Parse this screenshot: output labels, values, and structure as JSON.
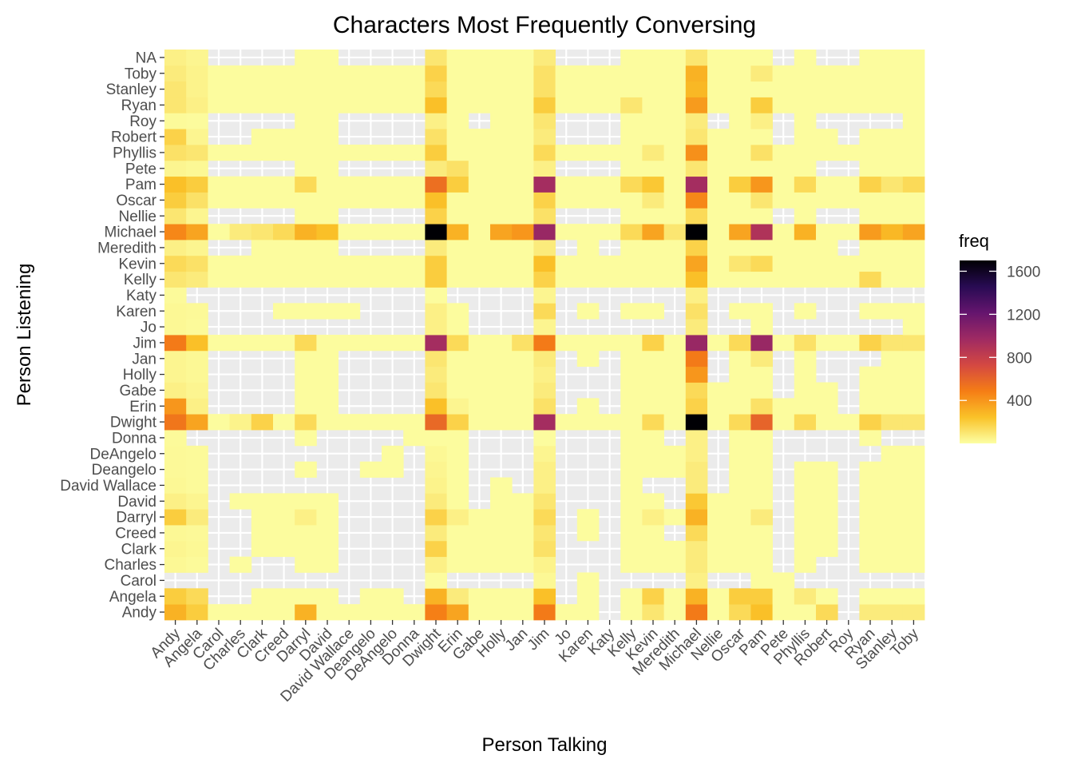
{
  "chart_data": {
    "type": "heatmap",
    "title": "Characters Most Frequently Conversing",
    "xlabel": "Person Talking",
    "ylabel": "Person Listening",
    "x_categories": [
      "Andy",
      "Angela",
      "Carol",
      "Charles",
      "Clark",
      "Creed",
      "Darryl",
      "David",
      "David Wallace",
      "Deangelo",
      "DeAngelo",
      "Donna",
      "Dwight",
      "Erin",
      "Gabe",
      "Holly",
      "Jan",
      "Jim",
      "Jo",
      "Karen",
      "Katy",
      "Kelly",
      "Kevin",
      "Meredith",
      "Michael",
      "Nellie",
      "Oscar",
      "Pam",
      "Pete",
      "Phyllis",
      "Robert",
      "Roy",
      "Ryan",
      "Stanley",
      "Toby"
    ],
    "y_categories": [
      "Andy",
      "Angela",
      "Carol",
      "Charles",
      "Clark",
      "Creed",
      "Darryl",
      "David",
      "David Wallace",
      "Deangelo",
      "DeAngelo",
      "Donna",
      "Dwight",
      "Erin",
      "Gabe",
      "Holly",
      "Jan",
      "Jim",
      "Jo",
      "Karen",
      "Katy",
      "Kelly",
      "Kevin",
      "Meredith",
      "Michael",
      "Nellie",
      "Oscar",
      "Pam",
      "Pete",
      "Phyllis",
      "Robert",
      "Roy",
      "Ryan",
      "Stanley",
      "Toby",
      "NA"
    ],
    "legend": {
      "title": "freq",
      "ticks": [
        400,
        800,
        1200,
        1600
      ],
      "range": [
        1,
        1700
      ],
      "palette": [
        "#fcffa4",
        "#fac228",
        "#f57d15",
        "#d44842",
        "#9f2a63",
        "#65156e",
        "#280b53",
        "#000004"
      ]
    },
    "missing_color": "#ebebeb",
    "cells": {
      "Andy": {
        "Andy": 300,
        "Angela": 200,
        "Darryl": 300,
        "Dwight": 480,
        "Erin": 350,
        "Jim": 500,
        "Kevin": 100,
        "Michael": 500,
        "Oscar": 150,
        "Pam": 250,
        "Robert": 150,
        "Ryan": 80,
        "Stanley": 80,
        "Toby": 80
      },
      "Angela": {
        "Andy": 200,
        "Angela": 150,
        "Dwight": 300,
        "Erin": 80,
        "Jim": 250,
        "Kevin": 180,
        "Michael": 300,
        "Oscar": 200,
        "Pam": 200,
        "Phyllis": 80
      },
      "Carol": {
        "Andy": 15,
        "Angela": 15,
        "Jim": 30,
        "Michael": 60
      },
      "Charles": {
        "Andy": 30,
        "Angela": 20,
        "Dwight": 60,
        "Jim": 50,
        "Michael": 80
      },
      "Clark": {
        "Andy": 40,
        "Angela": 30,
        "Dwight": 180,
        "Jim": 120,
        "Michael": 80
      },
      "Creed": {
        "Andy": 30,
        "Angela": 25,
        "Dwight": 80,
        "Jim": 100,
        "Michael": 150
      },
      "Darryl": {
        "Andy": 200,
        "Angela": 80,
        "Darryl": 60,
        "Dwight": 180,
        "Erin": 60,
        "Jim": 150,
        "Kevin": 60,
        "Michael": 300,
        "Pam": 80
      },
      "David": {
        "Andy": 60,
        "Angela": 40,
        "Dwight": 80,
        "Jim": 100,
        "Michael": 220
      },
      "David Wallace": {
        "Andy": 30,
        "Angela": 20,
        "Dwight": 50,
        "Jim": 60,
        "Michael": 80
      },
      "Deangelo": {
        "Andy": 25,
        "Angela": 20,
        "Dwight": 40,
        "Jim": 60,
        "Michael": 80
      },
      "DeAngelo": {
        "Andy": 25,
        "Angela": 20,
        "Dwight": 30,
        "Jim": 40,
        "Michael": 60
      },
      "Donna": {
        "Andy": 20,
        "Michael": 60
      },
      "Dwight": {
        "Andy": 520,
        "Angela": 350,
        "Charles": 50,
        "Clark": 180,
        "Darryl": 150,
        "Dwight": 580,
        "Erin": 180,
        "Jim": 950,
        "Kevin": 150,
        "Michael": 1700,
        "Oscar": 150,
        "Pam": 600,
        "Phyllis": 150,
        "Ryan": 180,
        "Stanley": 100,
        "Toby": 100
      },
      "Erin": {
        "Andy": 400,
        "Angela": 60,
        "Dwight": 250,
        "Erin": 40,
        "Jim": 120,
        "Michael": 180,
        "Pam": 120
      },
      "Gabe": {
        "Andy": 60,
        "Angela": 40,
        "Dwight": 100,
        "Jim": 80,
        "Michael": 150
      },
      "Holly": {
        "Andy": 40,
        "Angela": 30,
        "Dwight": 80,
        "Jim": 60,
        "Michael": 400
      },
      "Jan": {
        "Andy": 40,
        "Angela": 30,
        "Dwight": 100,
        "Jim": 80,
        "Michael": 500,
        "Pam": 80
      },
      "Jim": {
        "Andy": 500,
        "Angela": 250,
        "Darryl": 150,
        "Dwight": 950,
        "Erin": 150,
        "Jan": 120,
        "Jim": 500,
        "Kevin": 180,
        "Michael": 1000,
        "Oscar": 150,
        "Pam": 1000,
        "Phyllis": 120,
        "Ryan": 180,
        "Stanley": 100,
        "Toby": 100
      },
      "Jo": {
        "Andy": 30,
        "Angela": 20,
        "Dwight": 60,
        "Jim": 40,
        "Michael": 80
      },
      "Karen": {
        "Andy": 30,
        "Angela": 25,
        "Dwight": 60,
        "Jim": 150,
        "Michael": 120
      },
      "Katy": {
        "Andy": 20,
        "Jim": 40,
        "Michael": 60
      },
      "Kelly": {
        "Andy": 100,
        "Angela": 80,
        "Dwight": 200,
        "Jim": 180,
        "Michael": 250,
        "Ryan": 150
      },
      "Kevin": {
        "Andy": 150,
        "Angela": 120,
        "Dwight": 200,
        "Jim": 250,
        "Michael": 350,
        "Oscar": 100,
        "Pam": 150
      },
      "Meredith": {
        "Andy": 60,
        "Angela": 40,
        "Dwight": 80,
        "Jim": 80,
        "Michael": 180
      },
      "Michael": {
        "Andy": 450,
        "Angela": 350,
        "Charles": 80,
        "Clark": 100,
        "Creed": 150,
        "Darryl": 300,
        "David": 250,
        "Dwight": 1700,
        "Erin": 300,
        "Holly": 350,
        "Jan": 400,
        "Jim": 1000,
        "Kelly": 150,
        "Kevin": 350,
        "Meredith": 100,
        "Michael": 1700,
        "Oscar": 350,
        "Pam": 900,
        "Phyllis": 300,
        "Ryan": 380,
        "Stanley": 280,
        "Toby": 350
      },
      "Nellie": {
        "Andy": 100,
        "Angela": 40,
        "Dwight": 180,
        "Jim": 120,
        "Michael": 150
      },
      "Oscar": {
        "Andy": 200,
        "Angela": 120,
        "Dwight": 250,
        "Jim": 180,
        "Kevin": 80,
        "Michael": 450,
        "Pam": 100
      },
      "Pam": {
        "Andy": 250,
        "Angela": 200,
        "Darryl": 150,
        "Dwight": 550,
        "Erin": 200,
        "Jim": 950,
        "Kelly": 150,
        "Kevin": 220,
        "Michael": 950,
        "Oscar": 200,
        "Pam": 400,
        "Phyllis": 150,
        "Ryan": 180,
        "Stanley": 100,
        "Toby": 150
      },
      "Pete": {
        "Andy": 40,
        "Angela": 30,
        "Dwight": 80,
        "Erin": 120,
        "Jim": 60,
        "Michael": 100
      },
      "Phyllis": {
        "Andy": 120,
        "Angela": 100,
        "Dwight": 200,
        "Jim": 150,
        "Kevin": 80,
        "Michael": 420,
        "Pam": 120
      },
      "Robert": {
        "Andy": 180,
        "Angela": 40,
        "Dwight": 120,
        "Jim": 80,
        "Michael": 100
      },
      "Roy": {
        "Andy": 20,
        "Angela": 15,
        "Dwight": 60,
        "Jim": 100,
        "Michael": 80,
        "Pam": 60
      },
      "Ryan": {
        "Andy": 100,
        "Angela": 60,
        "Dwight": 250,
        "Jim": 200,
        "Kelly": 100,
        "Michael": 380,
        "Pam": 200
      },
      "Stanley": {
        "Andy": 100,
        "Angela": 50,
        "Dwight": 150,
        "Jim": 120,
        "Michael": 280
      },
      "Toby": {
        "Andy": 80,
        "Angela": 50,
        "Dwight": 180,
        "Jim": 120,
        "Michael": 300,
        "Pam": 80
      },
      "NA": {
        "Andy": 60,
        "Angela": 40,
        "Dwight": 100,
        "Jim": 80,
        "Michael": 100
      }
    },
    "missing": {
      "Carol": [
        "Andy",
        "Angela",
        "Carol",
        "Charles",
        "Clark",
        "Creed",
        "Darryl",
        "David",
        "David Wallace",
        "Deangelo",
        "DeAngelo",
        "Donna",
        "Erin",
        "Gabe",
        "Holly",
        "Jan",
        "Jo",
        "Katy",
        "Kelly",
        "Kevin",
        "Meredith",
        "Nellie",
        "Oscar",
        "Phyllis",
        "Robert",
        "Roy",
        "Ryan",
        "Stanley",
        "Toby"
      ],
      "Donna": [
        "Angela",
        "Carol",
        "Charles",
        "Clark",
        "Creed",
        "David",
        "David Wallace",
        "Deangelo",
        "DeAngelo",
        "Gabe",
        "Holly",
        "Jan",
        "Jo",
        "Karen",
        "Katy",
        "Meredith",
        "Nellie",
        "Pete",
        "Phyllis",
        "Robert",
        "Roy",
        "Stanley",
        "Toby"
      ],
      "DeAngelo": [
        "Carol",
        "Charles",
        "Clark",
        "Creed",
        "Darryl",
        "David",
        "David Wallace",
        "Deangelo",
        "Donna",
        "Gabe",
        "Holly",
        "Jan",
        "Jo",
        "Karen",
        "Katy",
        "Nellie",
        "Pete",
        "Phyllis",
        "Robert",
        "Roy",
        "Ryan"
      ],
      "Deangelo": [
        "Carol",
        "Charles",
        "Clark",
        "Creed",
        "David",
        "David Wallace",
        "Donna",
        "Gabe",
        "Holly",
        "Jan",
        "Jo",
        "Karen",
        "Katy",
        "Nellie",
        "Pete",
        "Roy"
      ],
      "David Wallace": [
        "Carol",
        "Charles",
        "Clark",
        "Creed",
        "Darryl",
        "David",
        "David Wallace",
        "Deangelo",
        "DeAngelo",
        "Donna",
        "Gabe",
        "Jan",
        "Jo",
        "Karen",
        "Katy",
        "Kevin",
        "Meredith",
        "Nellie",
        "Pete",
        "Roy"
      ],
      "David": [
        "Carol",
        "David Wallace",
        "Deangelo",
        "DeAngelo",
        "Donna",
        "Gabe",
        "Jo",
        "Karen",
        "Katy",
        "Meredith",
        "Pete",
        "Roy"
      ],
      "Darryl": [
        "Carol",
        "Charles",
        "David Wallace",
        "Deangelo",
        "DeAngelo",
        "Donna",
        "Jo",
        "Katy",
        "Roy",
        "Pete"
      ],
      "Creed": [
        "Carol",
        "Charles",
        "David Wallace",
        "Deangelo",
        "DeAngelo",
        "Donna",
        "Jo",
        "Katy",
        "Roy",
        "Pete",
        "Meredith"
      ],
      "Clark": [
        "Carol",
        "Charles",
        "David Wallace",
        "Deangelo",
        "DeAngelo",
        "Donna",
        "Jo",
        "Karen",
        "Katy",
        "Roy",
        "Pete"
      ],
      "Charles": [
        "Carol",
        "Clark",
        "Creed",
        "David Wallace",
        "Deangelo",
        "DeAngelo",
        "Donna",
        "Jo",
        "Karen",
        "Katy",
        "Roy",
        "Pete",
        "Robert"
      ],
      "Angela": [
        "Carol",
        "Charles",
        "David Wallace",
        "Donna",
        "Jo",
        "Katy",
        "Roy"
      ],
      "Andy": [
        "Katy",
        "Roy"
      ],
      "Katy": [
        "Angela",
        "Carol",
        "Charles",
        "Clark",
        "Creed",
        "Darryl",
        "David",
        "David Wallace",
        "Deangelo",
        "DeAngelo",
        "Donna",
        "Erin",
        "Gabe",
        "Holly",
        "Jan",
        "Jo",
        "Karen",
        "Katy",
        "Kelly",
        "Kevin",
        "Meredith",
        "Nellie",
        "Oscar",
        "Pam",
        "Pete",
        "Phyllis",
        "Robert",
        "Roy",
        "Ryan",
        "Stanley",
        "Toby"
      ],
      "Jo": [
        "Carol",
        "Charles",
        "Clark",
        "Creed",
        "Darryl",
        "David",
        "David Wallace",
        "Deangelo",
        "DeAngelo",
        "Donna",
        "Gabe",
        "Holly",
        "Jan",
        "Jo",
        "Karen",
        "Katy",
        "Kelly",
        "Kevin",
        "Meredith",
        "Nellie",
        "Oscar",
        "Pete",
        "Phyllis",
        "Robert",
        "Roy",
        "Ryan",
        "Stanley"
      ],
      "Karen": [
        "Carol",
        "Charles",
        "Clark",
        "Deangelo",
        "DeAngelo",
        "Donna",
        "Gabe",
        "Holly",
        "Jan",
        "Jo",
        "Katy",
        "Meredith",
        "Nellie",
        "Pete",
        "Robert",
        "Roy"
      ],
      "Jan": [
        "Carol",
        "Charles",
        "Clark",
        "Creed",
        "David Wallace",
        "Deangelo",
        "DeAngelo",
        "Donna",
        "Jo",
        "Katy",
        "Nellie",
        "Pete",
        "Robert",
        "Roy",
        "Ryan"
      ],
      "Holly": [
        "Carol",
        "Charles",
        "Clark",
        "Creed",
        "David Wallace",
        "Deangelo",
        "DeAngelo",
        "Donna",
        "Jo",
        "Karen",
        "Katy",
        "Nellie",
        "Pete",
        "Robert",
        "Roy"
      ],
      "Gabe": [
        "Carol",
        "Charles",
        "Clark",
        "Creed",
        "David Wallace",
        "Deangelo",
        "DeAngelo",
        "Donna",
        "Jo",
        "Karen",
        "Katy",
        "Pete",
        "Roy"
      ],
      "Erin": [
        "Carol",
        "Charles",
        "Clark",
        "Creed",
        "David Wallace",
        "Deangelo",
        "DeAngelo",
        "Donna",
        "Jo",
        "Katy",
        "Roy"
      ],
      "Nellie": [
        "Carol",
        "Charles",
        "Clark",
        "Creed",
        "David Wallace",
        "Deangelo",
        "DeAngelo",
        "Donna",
        "Jo",
        "Karen",
        "Katy",
        "Pete",
        "Roy",
        "Robert"
      ],
      "Roy": [
        "Carol",
        "Charles",
        "Clark",
        "Creed",
        "David Wallace",
        "Deangelo",
        "DeAngelo",
        "Donna",
        "Gabe",
        "Jo",
        "Karen",
        "Katy",
        "Nellie",
        "Pete",
        "Robert",
        "Roy",
        "Ryan",
        "Stanley"
      ],
      "Pete": [
        "Carol",
        "Charles",
        "Clark",
        "Creed",
        "David Wallace",
        "Deangelo",
        "DeAngelo",
        "Donna",
        "Jo",
        "Karen",
        "Katy",
        "Roy",
        "Robert"
      ],
      "Robert": [
        "Carol",
        "Charles",
        "David Wallace",
        "Deangelo",
        "DeAngelo",
        "Donna",
        "Jo",
        "Karen",
        "Katy",
        "Pete",
        "Roy"
      ],
      "NA": [
        "Carol",
        "Charles",
        "Clark",
        "Creed",
        "David Wallace",
        "Deangelo",
        "DeAngelo",
        "Donna",
        "Jo",
        "Karen",
        "Katy",
        "Pete",
        "Roy",
        "Robert"
      ],
      "Meredith": [
        "Carol",
        "Charles",
        "David Wallace",
        "Deangelo",
        "DeAngelo",
        "Donna",
        "Jo",
        "Katy",
        "Roy"
      ]
    }
  }
}
